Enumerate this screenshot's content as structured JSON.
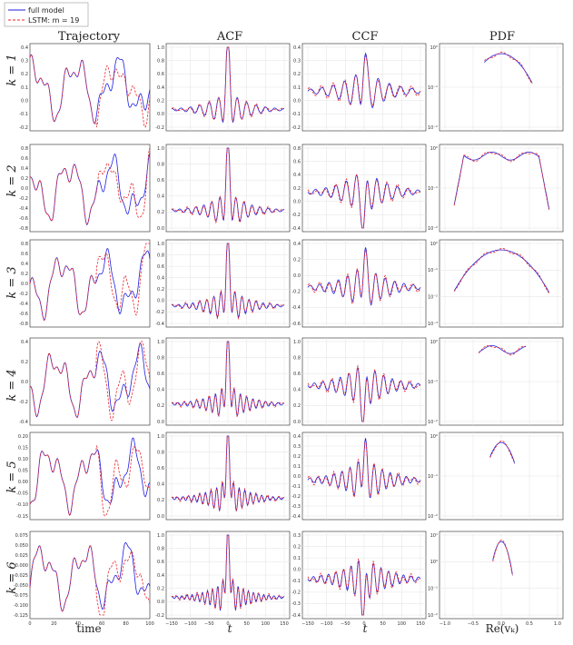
{
  "figure": {
    "column_headers": [
      "Trajectory",
      "ACF",
      "CCF",
      "PDF"
    ],
    "row_labels": [
      "k = 1",
      "k = 2",
      "k = 3",
      "k = 4",
      "k = 5",
      "k = 6"
    ],
    "x_labels": [
      "time",
      "t",
      "t",
      "Re(vₖ)"
    ],
    "legend": [
      "full model",
      "LSTM: m = 19"
    ],
    "colors": {
      "full_model": "#1f1fe0",
      "lstm": "#e8242a"
    }
  },
  "chart_data": [
    {
      "type": "line",
      "panel": "trajectory",
      "row": 1,
      "xlim": [
        0,
        100
      ],
      "ylim": [
        -0.3,
        0.4
      ],
      "yticks": [
        "0.4",
        "0.3",
        "0.2",
        "0.1",
        "0.0",
        "-0.1",
        "-0.2"
      ],
      "xticks": []
    },
    {
      "type": "line",
      "panel": "acf",
      "row": 1,
      "xlim": [
        -150,
        150
      ],
      "ylim": [
        -0.2,
        1.05
      ],
      "yticks": [
        "1.0",
        "0.8",
        "0.6",
        "0.4",
        "0.2",
        "0.0",
        "-0.2"
      ]
    },
    {
      "type": "line",
      "panel": "ccf",
      "row": 1,
      "xlim": [
        -150,
        150
      ],
      "ylim": [
        -0.2,
        0.45
      ],
      "yticks": [
        "0.4",
        "0.3",
        "0.2",
        "0.1",
        "0.0",
        "-0.1",
        "-0.2"
      ]
    },
    {
      "type": "line",
      "panel": "pdf",
      "row": 1,
      "xlim": [
        -1.2,
        1.2
      ],
      "log_y": true,
      "yticks": [
        "10⁰",
        "10⁻¹",
        "10⁻²"
      ]
    },
    {
      "type": "line",
      "panel": "trajectory",
      "row": 2,
      "xlim": [
        0,
        100
      ],
      "ylim": [
        -0.8,
        0.8
      ],
      "yticks": [
        "0.8",
        "0.6",
        "0.4",
        "0.2",
        "0.0",
        "-0.2",
        "-0.4",
        "-0.6",
        "-0.8"
      ]
    },
    {
      "type": "line",
      "panel": "acf",
      "row": 2,
      "xlim": [
        -150,
        150
      ],
      "ylim": [
        0.0,
        1.05
      ],
      "yticks": [
        "1.0",
        "0.8",
        "0.6",
        "0.4",
        "0.2",
        "0.0"
      ]
    },
    {
      "type": "line",
      "panel": "ccf",
      "row": 2,
      "xlim": [
        -150,
        150
      ],
      "ylim": [
        -0.4,
        0.8
      ],
      "yticks": [
        "0.8",
        "0.6",
        "0.4",
        "0.2",
        "0.0",
        "-0.2",
        "-0.4"
      ]
    },
    {
      "type": "line",
      "panel": "pdf",
      "row": 2,
      "xlim": [
        -1.2,
        1.2
      ],
      "log_y": true,
      "yticks": [
        "10⁰",
        "10⁻¹",
        "10⁻²"
      ]
    },
    {
      "type": "line",
      "panel": "trajectory",
      "row": 3,
      "xlim": [
        0,
        100
      ],
      "ylim": [
        -0.8,
        0.8
      ],
      "yticks": [
        "0.8",
        "0.6",
        "0.4",
        "0.2",
        "0.0",
        "-0.2",
        "-0.4",
        "-0.6",
        "-0.8"
      ]
    },
    {
      "type": "line",
      "panel": "acf",
      "row": 3,
      "xlim": [
        -150,
        150
      ],
      "ylim": [
        -0.4,
        1.05
      ],
      "yticks": [
        "1.0",
        "0.8",
        "0.6",
        "0.4",
        "0.2",
        "0.0",
        "-0.2",
        "-0.4"
      ]
    },
    {
      "type": "line",
      "panel": "ccf",
      "row": 3,
      "xlim": [
        -150,
        150
      ],
      "ylim": [
        -0.6,
        0.45
      ],
      "yticks": [
        "0.4",
        "0.2",
        "0.0",
        "-0.2",
        "-0.4",
        "-0.6"
      ]
    },
    {
      "type": "line",
      "panel": "pdf",
      "row": 3,
      "xlim": [
        -1.2,
        1.2
      ],
      "log_y": true,
      "yticks": [
        "10⁰",
        "10⁻¹",
        "10⁻²",
        "10⁻³"
      ]
    },
    {
      "type": "line",
      "panel": "trajectory",
      "row": 4,
      "xlim": [
        0,
        100
      ],
      "ylim": [
        -0.4,
        0.5
      ],
      "yticks": [
        "0.4",
        "0.2",
        "0.0",
        "-0.2",
        "-0.4"
      ]
    },
    {
      "type": "line",
      "panel": "acf",
      "row": 4,
      "xlim": [
        -150,
        150
      ],
      "ylim": [
        0.0,
        1.05
      ],
      "yticks": [
        "1.0",
        "0.8",
        "0.6",
        "0.4",
        "0.2",
        "0.0"
      ]
    },
    {
      "type": "line",
      "panel": "ccf",
      "row": 4,
      "xlim": [
        -150,
        150
      ],
      "ylim": [
        0.0,
        1.05
      ],
      "yticks": [
        "1.0",
        "0.8",
        "0.6",
        "0.4",
        "0.2",
        "0.0"
      ]
    },
    {
      "type": "line",
      "panel": "pdf",
      "row": 4,
      "xlim": [
        -1.2,
        1.2
      ],
      "log_y": true,
      "yticks": [
        "10⁰",
        "10⁻¹",
        "10⁻²"
      ]
    },
    {
      "type": "line",
      "panel": "trajectory",
      "row": 5,
      "xlim": [
        0,
        100
      ],
      "ylim": [
        -0.15,
        0.2
      ],
      "yticks": [
        "0.20",
        "0.15",
        "0.10",
        "0.05",
        "0.00",
        "-0.05",
        "-0.10",
        "-0.15"
      ]
    },
    {
      "type": "line",
      "panel": "acf",
      "row": 5,
      "xlim": [
        -150,
        150
      ],
      "ylim": [
        0.0,
        1.05
      ],
      "yticks": [
        "1.0",
        "0.8",
        "0.6",
        "0.4",
        "0.2",
        "0.0"
      ]
    },
    {
      "type": "line",
      "panel": "ccf",
      "row": 5,
      "xlim": [
        -150,
        150
      ],
      "ylim": [
        -0.4,
        0.4
      ],
      "yticks": [
        "0.4",
        "0.3",
        "0.2",
        "0.1",
        "0.0",
        "-0.1",
        "-0.2",
        "-0.3",
        "-0.4"
      ]
    },
    {
      "type": "line",
      "panel": "pdf",
      "row": 5,
      "xlim": [
        -1.2,
        1.2
      ],
      "log_y": true,
      "yticks": [
        "10⁰",
        "10⁻¹",
        "10⁻²"
      ]
    },
    {
      "type": "line",
      "panel": "trajectory",
      "row": 6,
      "xlim": [
        0,
        100
      ],
      "ylim": [
        -0.15,
        0.08
      ],
      "yticks": [
        "0.075",
        "0.050",
        "0.025",
        "0.000",
        "-0.025",
        "-0.050",
        "-0.075",
        "-0.100",
        "-0.125"
      ],
      "xticks": [
        "0",
        "20",
        "40",
        "60",
        "80",
        "100"
      ]
    },
    {
      "type": "line",
      "panel": "acf",
      "row": 6,
      "xlim": [
        -150,
        150
      ],
      "ylim": [
        -0.2,
        1.05
      ],
      "yticks": [
        "1.0",
        "0.8",
        "0.6",
        "0.4",
        "0.2",
        "0.0",
        "-0.2"
      ],
      "xticks": [
        "−150",
        "−100",
        "−50",
        "0",
        "50",
        "100",
        "150"
      ]
    },
    {
      "type": "line",
      "panel": "ccf",
      "row": 6,
      "xlim": [
        -150,
        150
      ],
      "ylim": [
        -0.4,
        0.35
      ],
      "yticks": [
        "0.3",
        "0.2",
        "0.1",
        "0.0",
        "-0.1",
        "-0.2",
        "-0.3",
        "-0.4"
      ],
      "xticks": [
        "−150",
        "−100",
        "−50",
        "0",
        "50",
        "100",
        "150"
      ]
    },
    {
      "type": "line",
      "panel": "pdf",
      "row": 6,
      "xlim": [
        -1.2,
        1.2
      ],
      "log_y": true,
      "yticks": [
        "10¹",
        "10⁰",
        "10⁻¹",
        "10⁻²"
      ],
      "xticks": [
        "−1.0",
        "−0.5",
        "0.0",
        "0.5",
        "1.0"
      ]
    }
  ]
}
